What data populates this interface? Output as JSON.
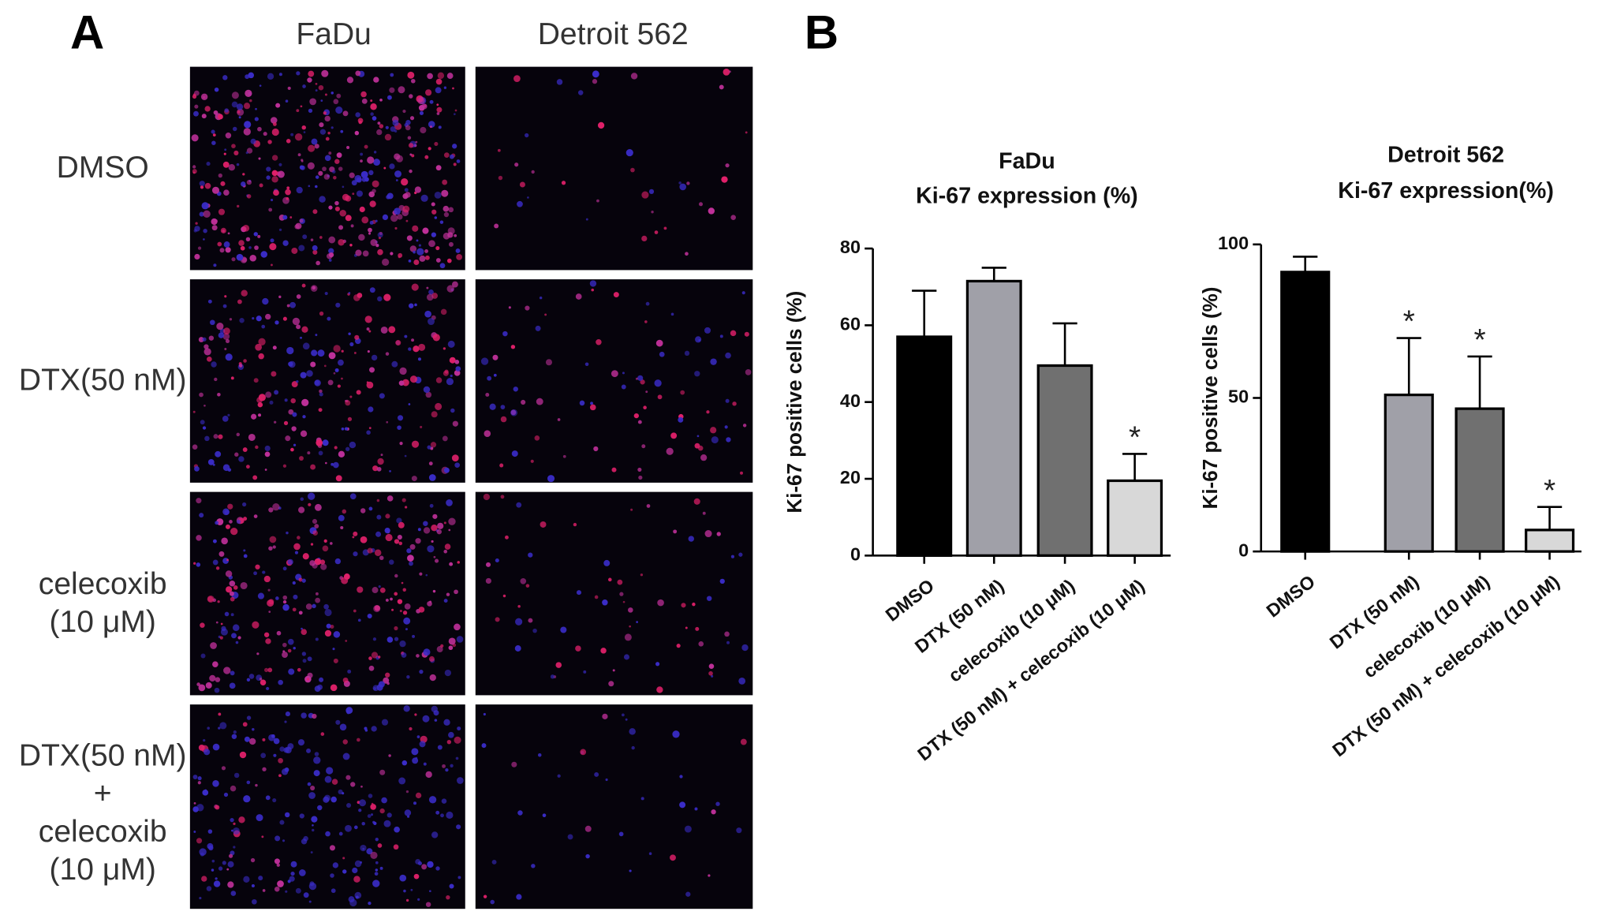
{
  "panel_a": {
    "label": "A",
    "columns": [
      "FaDu",
      "Detroit 562"
    ],
    "rows": [
      [
        "DMSO"
      ],
      [
        "DTX(50 nM)"
      ],
      [
        "celecoxib",
        "(10 μM)"
      ],
      [
        "DTX(50 nM)",
        "+",
        "celecoxib",
        "(10 μM)"
      ]
    ]
  },
  "panel_b": {
    "label": "B"
  },
  "chart_data": [
    {
      "type": "bar",
      "title": [
        "FaDu",
        "Ki-67 expression (%)"
      ],
      "y_label": "Ki-67 positive cells (%)",
      "categories": [
        "DMSO",
        "DTX (50 nM)",
        "celecoxib (10 μM)",
        "DTX (50 nM) + celecoxib (10 μM)"
      ],
      "values": [
        57,
        71.5,
        49.5,
        19.5
      ],
      "errors": [
        12,
        3.5,
        11,
        7
      ],
      "colors": [
        "#000000",
        "#a0a0a8",
        "#707070",
        "#d8d8d8"
      ],
      "significance": [
        null,
        null,
        null,
        "*"
      ],
      "ylim": [
        0,
        80
      ],
      "yticks": [
        0,
        20,
        40,
        60,
        80
      ]
    },
    {
      "type": "bar",
      "title": [
        "Detroit 562",
        "Ki-67 expression(%)"
      ],
      "y_label": "Ki-67 positive cells (%)",
      "categories": [
        "DMSO",
        "DTX (50 nM)",
        "celecoxib (10 μM)",
        "DTX (50 nM) + celecoxib (10 μM)"
      ],
      "values": [
        91,
        51,
        46.5,
        7
      ],
      "errors": [
        5,
        18.5,
        17,
        7.5
      ],
      "colors": [
        "#000000",
        "#a0a0a8",
        "#707070",
        "#d8d8d8"
      ],
      "significance": [
        null,
        "*",
        "*",
        "*"
      ],
      "ylim": [
        0,
        100
      ],
      "yticks": [
        0,
        50,
        100
      ]
    }
  ]
}
